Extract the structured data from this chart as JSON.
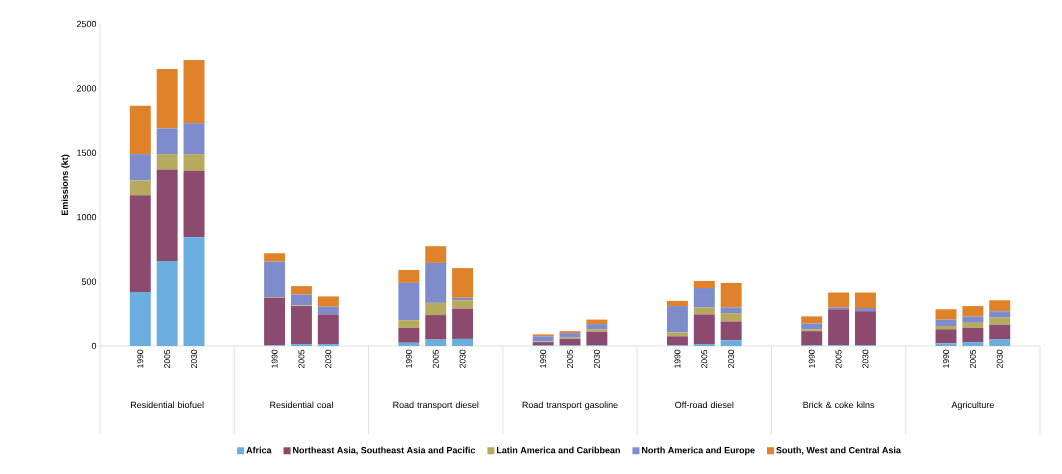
{
  "chart_data": {
    "type": "bar",
    "stacked": true,
    "ylabel": "Emissions (kt)",
    "categories": [
      null,
      "1990",
      "2005",
      "2030",
      null,
      null,
      "1990",
      "2005",
      "2030",
      null,
      null,
      "1990",
      "2005",
      "2030",
      null,
      null,
      "1990",
      "2005",
      "2030",
      null,
      null,
      "1990",
      "2005",
      "2030",
      null,
      null,
      "1990",
      "2005",
      "2030",
      null,
      null,
      "1990",
      "2005",
      "2030",
      null
    ],
    "annotations": [
      "Residential biofuel",
      "Residential coal",
      "Road transport diesel",
      "Road transport gasoline",
      "Off-road diesel",
      "Brick & coke kilns",
      "Agriculture"
    ],
    "series": [
      {
        "name": "Africa",
        "color": "#6aaee0",
        "values": [
          null,
          420,
          660,
          845,
          null,
          null,
          5,
          15,
          15,
          null,
          null,
          25,
          50,
          55,
          null,
          null,
          5,
          5,
          5,
          null,
          null,
          5,
          15,
          45,
          null,
          null,
          5,
          5,
          5,
          null,
          null,
          20,
          30,
          50,
          null
        ]
      },
      {
        "name": "Northeast Asia, Southeast Asia and Pacific",
        "color": "#8b4a6e",
        "values": [
          null,
          750,
          710,
          515,
          null,
          null,
          370,
          295,
          230,
          null,
          null,
          115,
          190,
          235,
          null,
          null,
          25,
          50,
          105,
          null,
          null,
          70,
          230,
          145,
          null,
          null,
          110,
          280,
          265,
          null,
          null,
          110,
          110,
          115,
          null
        ]
      },
      {
        "name": "Latin America and Caribbean",
        "color": "#b5aa5e",
        "values": [
          null,
          115,
          120,
          130,
          null,
          null,
          5,
          5,
          null,
          null,
          null,
          60,
          95,
          65,
          null,
          null,
          5,
          10,
          20,
          null,
          null,
          30,
          55,
          65,
          null,
          null,
          15,
          null,
          null,
          null,
          null,
          25,
          40,
          55,
          null
        ]
      },
      {
        "name": "North America and Europe",
        "color": "#7f8ccb",
        "values": [
          null,
          205,
          200,
          240,
          null,
          null,
          275,
          85,
          60,
          null,
          null,
          290,
          310,
          20,
          null,
          null,
          40,
          35,
          40,
          null,
          null,
          205,
          150,
          45,
          null,
          null,
          45,
          15,
          25,
          null,
          null,
          50,
          50,
          50,
          null
        ]
      },
      {
        "name": "South, West and Central Asia",
        "color": "#e0822a",
        "values": [
          null,
          375,
          460,
          490,
          null,
          null,
          65,
          65,
          80,
          null,
          null,
          100,
          130,
          230,
          null,
          null,
          15,
          15,
          35,
          null,
          null,
          40,
          55,
          190,
          null,
          null,
          55,
          115,
          120,
          null,
          null,
          80,
          80,
          85,
          null
        ]
      }
    ],
    "ylim": [
      0,
      2500
    ],
    "yticks": [
      0,
      500,
      1000,
      1500,
      2000,
      2500
    ],
    "legend": "bottom"
  }
}
